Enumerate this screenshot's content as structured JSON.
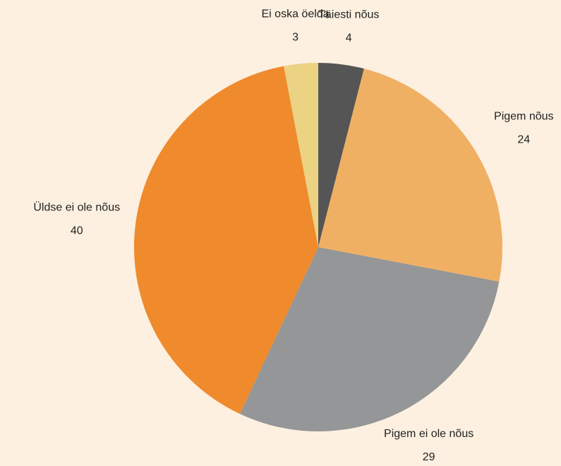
{
  "chart_data": {
    "type": "pie",
    "categories": [
      "Täiesti nõus",
      "Pigem nõus",
      "Pigem ei ole nõus",
      "Üldse ei ole nõus",
      "Ei oska öelda"
    ],
    "values": [
      4,
      24,
      29,
      40,
      3
    ],
    "colors": [
      "#555555",
      "#f0b063",
      "#949697",
      "#ef8a2d",
      "#ecd283"
    ]
  }
}
